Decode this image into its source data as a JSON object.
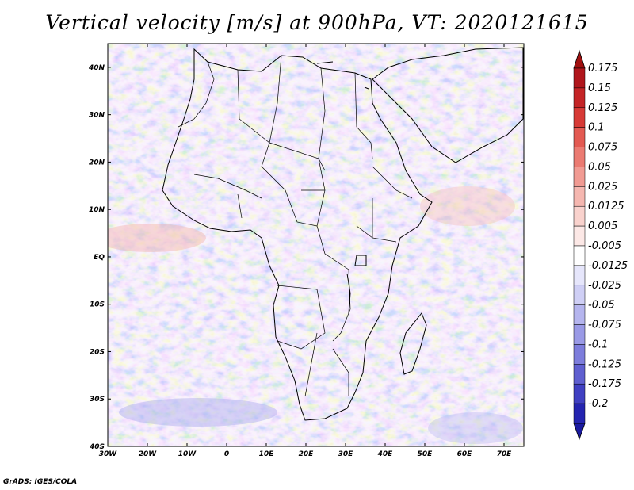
{
  "title": "Vertical velocity [m/s] at 900hPa, VT: 2020121615",
  "credit": "GrADS: IGES/COLA",
  "map": {
    "lon_range": [
      -30,
      75
    ],
    "lat_range": [
      -40,
      45
    ],
    "lat_ticks": [
      {
        "value": 40,
        "label": "40N"
      },
      {
        "value": 30,
        "label": "30N"
      },
      {
        "value": 20,
        "label": "20N"
      },
      {
        "value": 10,
        "label": "10N"
      },
      {
        "value": 0,
        "label": "EQ"
      },
      {
        "value": -10,
        "label": "10S"
      },
      {
        "value": -20,
        "label": "20S"
      },
      {
        "value": -30,
        "label": "30S"
      },
      {
        "value": -40,
        "label": "40S"
      }
    ],
    "lon_ticks": [
      {
        "value": -30,
        "label": "30W"
      },
      {
        "value": -20,
        "label": "20W"
      },
      {
        "value": -10,
        "label": "10W"
      },
      {
        "value": 0,
        "label": "0"
      },
      {
        "value": 10,
        "label": "10E"
      },
      {
        "value": 20,
        "label": "20E"
      },
      {
        "value": 30,
        "label": "30E"
      },
      {
        "value": 40,
        "label": "40E"
      },
      {
        "value": 50,
        "label": "50E"
      },
      {
        "value": 60,
        "label": "60E"
      },
      {
        "value": 70,
        "label": "70E"
      }
    ]
  },
  "colorbar": {
    "levels": [
      {
        "label": "0.175",
        "color": "#b0161c"
      },
      {
        "label": "0.15",
        "color": "#c42426"
      },
      {
        "label": "0.125",
        "color": "#d73a36"
      },
      {
        "label": "0.1",
        "color": "#e35a52"
      },
      {
        "label": "0.075",
        "color": "#eb7b72"
      },
      {
        "label": "0.05",
        "color": "#f19b93"
      },
      {
        "label": "0.025",
        "color": "#f5b7b0"
      },
      {
        "label": "0.0125",
        "color": "#f9d2cd"
      },
      {
        "label": "0.005",
        "color": "#fce8e6"
      },
      {
        "label": "-0.005",
        "color": "#ffffff"
      },
      {
        "label": "-0.0125",
        "color": "#e6e6fb"
      },
      {
        "label": "-0.025",
        "color": "#cfcff5"
      },
      {
        "label": "-0.05",
        "color": "#b5b5ee"
      },
      {
        "label": "-0.075",
        "color": "#9a9ae6"
      },
      {
        "label": "-0.1",
        "color": "#7d7ddc"
      },
      {
        "label": "-0.125",
        "color": "#5f5fd0"
      },
      {
        "label": "-0.175",
        "color": "#4040c2"
      },
      {
        "label": "-0.2",
        "color": "#2424b0"
      }
    ],
    "top_arrow_color": "#a01010",
    "bottom_arrow_color": "#1a1aa0"
  }
}
